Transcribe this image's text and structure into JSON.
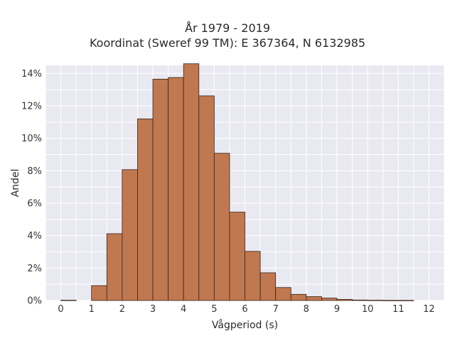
{
  "title": "År 1979 - 2019",
  "subtitle": "Koordinat (Sweref 99 TM): E 367364, N 6132985",
  "chart_data": {
    "type": "bar",
    "title": "År 1979 - 2019",
    "subtitle": "Koordinat (Sweref 99 TM): E 367364, N 6132985",
    "xlabel": "Vågperiod (s)",
    "ylabel": "Andel",
    "x_ticks": [
      "0",
      "1",
      "2",
      "3",
      "4",
      "5",
      "6",
      "7",
      "8",
      "9",
      "10",
      "11",
      "12"
    ],
    "y_ticks": [
      "0%",
      "2%",
      "4%",
      "6%",
      "8%",
      "10%",
      "12%",
      "14%"
    ],
    "xlim": [
      -0.5,
      12.5
    ],
    "ylim": [
      0,
      14.5
    ],
    "bin_width": 0.5,
    "bin_edges_start": [
      0,
      0.5,
      1,
      1.5,
      2,
      2.5,
      3,
      3.5,
      4,
      4.5,
      5,
      5.5,
      6,
      6.5,
      7,
      7.5,
      8,
      8.5,
      9,
      9.5,
      10,
      10.5,
      11,
      11.5
    ],
    "values": [
      0.02,
      0.0,
      0.92,
      4.12,
      8.07,
      11.2,
      13.65,
      13.75,
      14.6,
      12.62,
      9.08,
      5.45,
      3.03,
      1.71,
      0.8,
      0.38,
      0.24,
      0.15,
      0.07,
      0.03,
      0.02,
      0.01,
      0.01,
      0.0
    ],
    "bar_color": "#c07850",
    "bar_edge_color": "#3a2418",
    "plot_bg": "#e9e9f2",
    "grid": true,
    "legend": false
  }
}
